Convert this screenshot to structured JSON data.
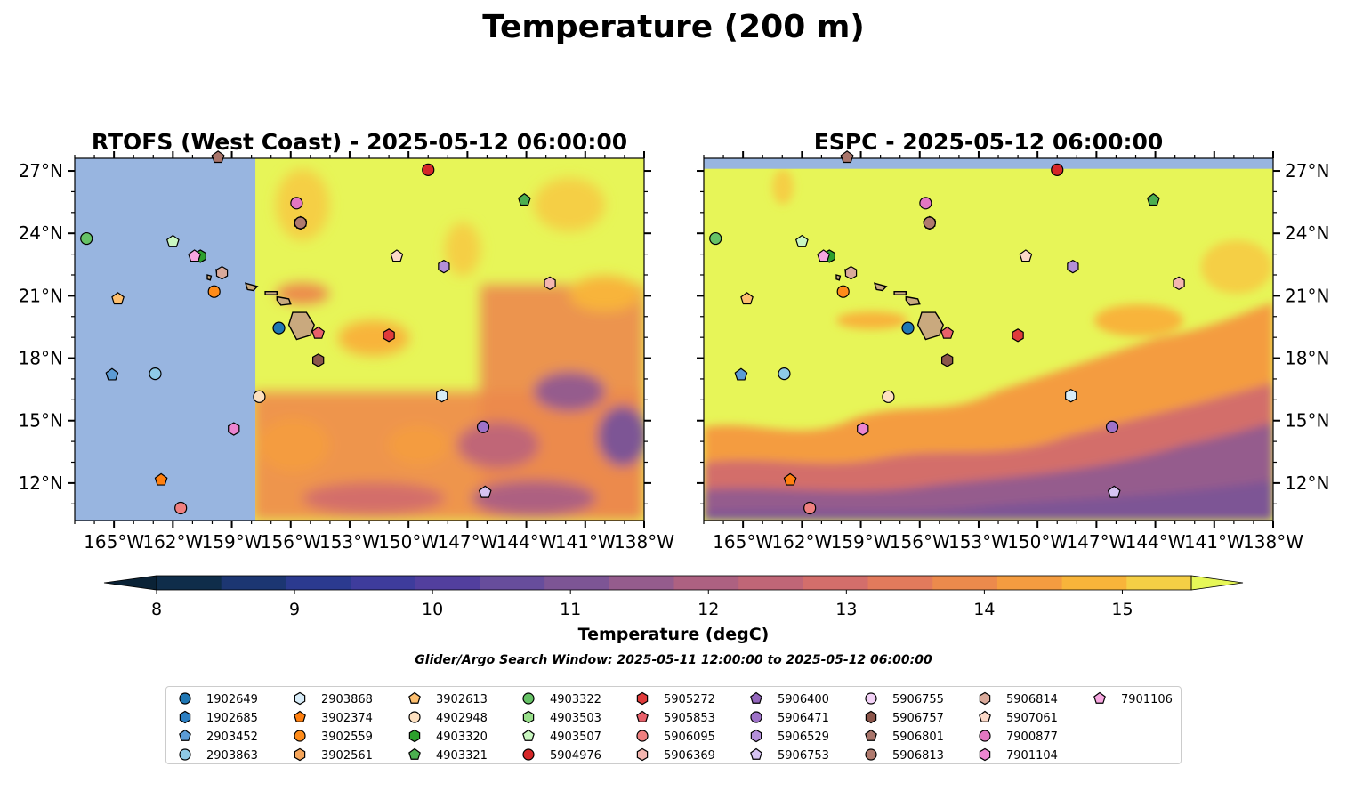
{
  "figure": {
    "title": "Temperature (200 m)",
    "subtitle": "Glider/Argo Search Window: 2025-05-11 12:00:00 to 2025-05-12 06:00:00"
  },
  "chart_data": [
    {
      "type": "heatmap",
      "title": "RTOFS (West Coast) - 2025-05-12 06:00:00",
      "x_ticks": [
        "165°W",
        "162°W",
        "159°W",
        "156°W",
        "153°W",
        "150°W",
        "147°W",
        "144°W",
        "141°W",
        "138°W"
      ],
      "y_ticks": [
        "27°N",
        "24°N",
        "21°N",
        "18°N",
        "15°N",
        "12°N"
      ],
      "xlim": [
        -167,
        -138
      ],
      "ylim": [
        10.2,
        27.6
      ],
      "no_data_region": {
        "lon_max": -157.8,
        "color": "#98b5e0"
      }
    },
    {
      "type": "heatmap",
      "title": "ESPC - 2025-05-12 06:00:00",
      "x_ticks": [
        "165°W",
        "162°W",
        "159°W",
        "156°W",
        "153°W",
        "150°W",
        "147°W",
        "144°W",
        "141°W",
        "138°W"
      ],
      "y_ticks": [
        "27°N",
        "24°N",
        "21°N",
        "18°N",
        "15°N",
        "12°N"
      ],
      "xlim": [
        -167,
        -138
      ],
      "ylim": [
        10.2,
        27.6
      ],
      "no_data_region": {
        "lat_min": 27.1,
        "color": "#98b5e0"
      }
    }
  ],
  "colorbar": {
    "label": "Temperature (degC)",
    "ticks": [
      "8",
      "9",
      "10",
      "11",
      "12",
      "13",
      "14",
      "15"
    ],
    "min": 8,
    "max": 15.5,
    "step": 0.5,
    "colors": [
      "#0f2d4a",
      "#1c3672",
      "#2b3a8f",
      "#3e3c9c",
      "#523f9e",
      "#674d9c",
      "#7d5595",
      "#955c8d",
      "#ad6181",
      "#c06677",
      "#d36e6b",
      "#e27a5c",
      "#ec8a4c",
      "#f49c40",
      "#f8b43a",
      "#f5cf45"
    ],
    "under_color": "#0a2236",
    "over_color": "#e6f757"
  },
  "floats": [
    {
      "id": "1902649",
      "marker": "circle",
      "color": "#1f77b4",
      "lon": -156.6,
      "lat": 19.45
    },
    {
      "id": "1902685",
      "marker": "hexagon",
      "color": "#2c7fc2",
      "lon": -155.5,
      "lat": 24.5
    },
    {
      "id": "2903452",
      "marker": "pentagon",
      "color": "#5b9bd5",
      "lon": -165.1,
      "lat": 17.2
    },
    {
      "id": "2903863",
      "marker": "circle",
      "color": "#8ecae6",
      "lon": -162.9,
      "lat": 17.25
    },
    {
      "id": "2903868",
      "marker": "hexagon",
      "color": "#d7ecf8",
      "lon": -148.3,
      "lat": 16.2
    },
    {
      "id": "3902374",
      "marker": "pentagon",
      "color": "#ff7f0e",
      "lon": -162.6,
      "lat": 12.15
    },
    {
      "id": "3902559",
      "marker": "circle",
      "color": "#ff8c1a",
      "lon": -159.9,
      "lat": 21.2
    },
    {
      "id": "3902561",
      "marker": "hexagon",
      "color": "#f5a55a",
      "lon": -155.5,
      "lat": 24.5
    },
    {
      "id": "3902613",
      "marker": "pentagon",
      "color": "#fdbf6f",
      "lon": -164.8,
      "lat": 20.85
    },
    {
      "id": "4902948",
      "marker": "circle",
      "color": "#fde0c0",
      "lon": -157.6,
      "lat": 16.15
    },
    {
      "id": "4903320",
      "marker": "hexagon",
      "color": "#2ca02c",
      "lon": -160.6,
      "lat": 22.9
    },
    {
      "id": "4903321",
      "marker": "pentagon",
      "color": "#4caf50",
      "lon": -144.1,
      "lat": 25.6
    },
    {
      "id": "4903322",
      "marker": "circle",
      "color": "#66c266",
      "lon": -166.4,
      "lat": 23.75
    },
    {
      "id": "4903503",
      "marker": "hexagon",
      "color": "#98df8a",
      "lon": -155.5,
      "lat": 24.5
    },
    {
      "id": "4903507",
      "marker": "pentagon",
      "color": "#c9f7c0",
      "lon": -162.0,
      "lat": 23.6
    },
    {
      "id": "5904976",
      "marker": "circle",
      "color": "#d62728",
      "lon": -149.0,
      "lat": 27.05
    },
    {
      "id": "5905272",
      "marker": "hexagon",
      "color": "#e03b3b",
      "lon": -151.0,
      "lat": 19.1
    },
    {
      "id": "5905853",
      "marker": "pentagon",
      "color": "#e8606a",
      "lon": -154.6,
      "lat": 19.2
    },
    {
      "id": "5906095",
      "marker": "circle",
      "color": "#f08080",
      "lon": -161.6,
      "lat": 10.8
    },
    {
      "id": "5906369",
      "marker": "hexagon",
      "color": "#f4b6b0",
      "lon": -142.8,
      "lat": 21.6
    },
    {
      "id": "5906400",
      "marker": "pentagon",
      "color": "#9467bd",
      "lon": -155.5,
      "lat": 24.5
    },
    {
      "id": "5906471",
      "marker": "circle",
      "color": "#9e72c8",
      "lon": -146.2,
      "lat": 14.7
    },
    {
      "id": "5906529",
      "marker": "hexagon",
      "color": "#b48fd9",
      "lon": -148.2,
      "lat": 22.4
    },
    {
      "id": "5906753",
      "marker": "pentagon",
      "color": "#d6c3f2",
      "lon": -146.1,
      "lat": 11.55
    },
    {
      "id": "5906755",
      "marker": "circle",
      "color": "#f3d2f7",
      "lon": -155.5,
      "lat": 24.5
    },
    {
      "id": "5906757",
      "marker": "hexagon",
      "color": "#8c564b",
      "lon": -154.6,
      "lat": 17.9
    },
    {
      "id": "5906801",
      "marker": "pentagon",
      "color": "#a9756b",
      "lon": -159.7,
      "lat": 27.65
    },
    {
      "id": "5906813",
      "marker": "circle",
      "color": "#b07a6e",
      "lon": -155.5,
      "lat": 24.5
    },
    {
      "id": "5906814",
      "marker": "hexagon",
      "color": "#d9a99a",
      "lon": -159.5,
      "lat": 22.1
    },
    {
      "id": "5907061",
      "marker": "pentagon",
      "color": "#fcd9c8",
      "lon": -150.6,
      "lat": 22.9
    },
    {
      "id": "7900877",
      "marker": "circle",
      "color": "#e377c2",
      "lon": -155.7,
      "lat": 25.45
    },
    {
      "id": "7901104",
      "marker": "hexagon",
      "color": "#ec85d0",
      "lon": -158.9,
      "lat": 14.6
    },
    {
      "id": "7901106",
      "marker": "pentagon",
      "color": "#f7a6e0",
      "lon": -160.9,
      "lat": 22.9
    }
  ],
  "legend_columns": 9,
  "islands": [
    {
      "name": "Hawaii",
      "poly": [
        [
          -155.9,
          20.2
        ],
        [
          -155.2,
          20.2
        ],
        [
          -154.8,
          19.6
        ],
        [
          -155.0,
          19.1
        ],
        [
          -155.7,
          18.9
        ],
        [
          -156.1,
          19.6
        ]
      ]
    },
    {
      "name": "Maui",
      "poly": [
        [
          -156.7,
          20.95
        ],
        [
          -156.1,
          20.85
        ],
        [
          -156.0,
          20.6
        ],
        [
          -156.5,
          20.55
        ],
        [
          -156.7,
          20.8
        ]
      ]
    },
    {
      "name": "Molokai",
      "poly": [
        [
          -157.3,
          21.2
        ],
        [
          -156.7,
          21.2
        ],
        [
          -156.7,
          21.05
        ],
        [
          -157.3,
          21.05
        ]
      ]
    },
    {
      "name": "Oahu",
      "poly": [
        [
          -158.3,
          21.6
        ],
        [
          -157.7,
          21.45
        ],
        [
          -157.9,
          21.25
        ],
        [
          -158.2,
          21.3
        ]
      ]
    },
    {
      "name": "Kauai",
      "poly": [
        [
          -159.8,
          22.25
        ],
        [
          -159.3,
          22.2
        ],
        [
          -159.4,
          21.9
        ],
        [
          -159.75,
          21.95
        ]
      ]
    },
    {
      "name": "Niihau",
      "poly": [
        [
          -160.25,
          22.0
        ],
        [
          -160.05,
          21.95
        ],
        [
          -160.1,
          21.75
        ],
        [
          -160.25,
          21.8
        ]
      ]
    }
  ]
}
